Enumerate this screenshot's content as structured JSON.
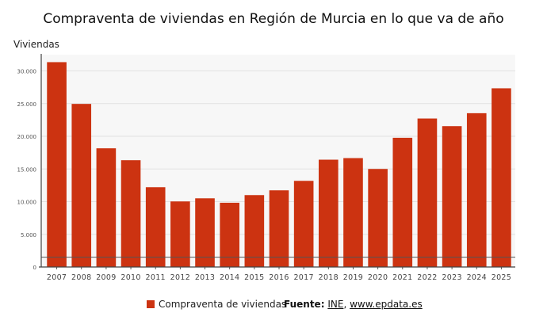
{
  "chart_data": {
    "type": "bar",
    "title": "Compraventa de viviendas en Región de Murcia en lo que va de año",
    "ylabel": "Viviendas",
    "xlabel": "",
    "categories": [
      "2007",
      "2008",
      "2009",
      "2010",
      "2011",
      "2012",
      "2013",
      "2014",
      "2015",
      "2016",
      "2017",
      "2018",
      "2019",
      "2020",
      "2021",
      "2022",
      "2023",
      "2024",
      "2025"
    ],
    "series": [
      {
        "name": "Compraventa de viviendas",
        "color": "#cc3311",
        "values": [
          31340,
          24950,
          18160,
          16340,
          12210,
          10030,
          10510,
          9830,
          11000,
          11730,
          13180,
          16420,
          16660,
          15000,
          19770,
          22720,
          21550,
          23530,
          27340
        ]
      }
    ],
    "ylim": [
      0,
      32000
    ],
    "yticks": [
      0,
      5000,
      10000,
      15000,
      20000,
      25000,
      30000
    ],
    "ytick_labels": [
      "0",
      "5.000",
      "10.000",
      "15.000",
      "20.000",
      "25.000",
      "30.000"
    ],
    "reference_line": 1500,
    "grid": true,
    "legend": "bottom"
  },
  "source": {
    "label": "Fuente:",
    "ine": "INE",
    "sep": ",",
    "site": "www.epdata.es"
  }
}
